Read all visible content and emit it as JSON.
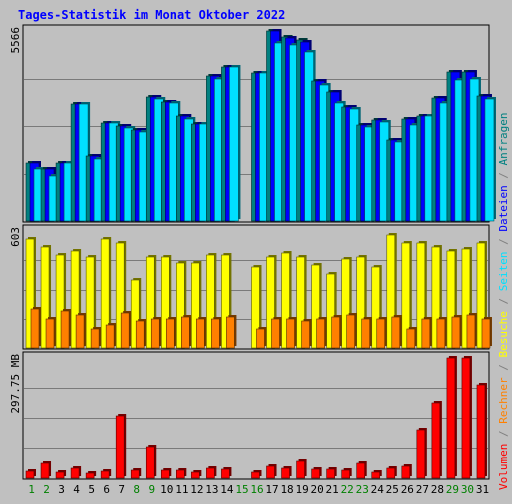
{
  "chart_data": {
    "type": "bar",
    "title": "Tages-Statistik im Monat Oktober 2022",
    "categories": [
      "1",
      "2",
      "3",
      "4",
      "5",
      "6",
      "7",
      "8",
      "9",
      "10",
      "11",
      "12",
      "13",
      "14",
      "15",
      "16",
      "17",
      "18",
      "19",
      "20",
      "21",
      "22",
      "23",
      "24",
      "25",
      "26",
      "27",
      "28",
      "29",
      "30",
      "31"
    ],
    "weekend_days": [
      "1",
      "2",
      "8",
      "9",
      "15",
      "16",
      "22",
      "23",
      "29",
      "30"
    ],
    "panels": [
      {
        "name": "top",
        "ymax_label": "5566",
        "ylim": [
          0,
          5566
        ],
        "series": [
          {
            "name": "Anfragen",
            "color": "#008080",
            "values": [
              1690,
              1510,
              1690,
              3440,
              1900,
              2870,
              2790,
              2680,
              3640,
              3500,
              3070,
              2830,
              4260,
              4520,
              0,
              4350,
              5566,
              5390,
              5290,
              4110,
              3790,
              3330,
              2820,
              2960,
              2380,
              3000,
              3070,
              3600,
              4370,
              4360,
              3650
            ]
          },
          {
            "name": "Dateien",
            "color": "#0000ff",
            "values": [
              1690,
              1510,
              1690,
              3440,
              1900,
              2870,
              2790,
              2680,
              3640,
              3500,
              3070,
              2830,
              4260,
              4520,
              0,
              4350,
              5566,
              5360,
              5250,
              4110,
              3790,
              3330,
              2820,
              2960,
              2380,
              3000,
              3070,
              3600,
              4370,
              4360,
              3650
            ]
          },
          {
            "name": "Seiten",
            "color": "#00e0ff",
            "values": [
              1510,
              1310,
              1690,
              3440,
              1810,
              2870,
              2720,
              2620,
              3580,
              3450,
              2990,
              2830,
              4150,
              4520,
              0,
              4350,
              5200,
              5170,
              4950,
              3980,
              3470,
              3270,
              2750,
              2900,
              2310,
              2800,
              3090,
              3470,
              4130,
              4150,
              3580
            ]
          }
        ]
      },
      {
        "name": "middle",
        "ymax_label": "603",
        "ylim": [
          0,
          603
        ],
        "series": [
          {
            "name": "Besuche",
            "color": "#ffff00",
            "values": [
              560,
              520,
              480,
              500,
              470,
              560,
              540,
              350,
              470,
              470,
              440,
              440,
              480,
              480,
              0,
              420,
              470,
              490,
              470,
              430,
              380,
              460,
              470,
              420,
              580,
              540,
              540,
              520,
              500,
              510,
              540
            ]
          },
          {
            "name": "Rechner",
            "color": "#ff8000",
            "values": [
              200,
              150,
              190,
              170,
              100,
              120,
              180,
              140,
              150,
              150,
              160,
              150,
              150,
              160,
              0,
              100,
              150,
              150,
              140,
              150,
              160,
              170,
              150,
              150,
              160,
              100,
              150,
              150,
              160,
              170,
              150
            ]
          }
        ]
      },
      {
        "name": "bottom",
        "ymax_label": "297.75 MB",
        "ylim": [
          0,
          297.75
        ],
        "series": [
          {
            "name": "Volumen",
            "color": "#ff0000",
            "values": [
              18,
              36,
              14,
              26,
              12,
              18,
              155,
              20,
              76,
              20,
              20,
              16,
              26,
              23,
              0,
              16,
              30,
              24,
              42,
              23,
              23,
              20,
              38,
              15,
              24,
              30,
              120,
              186,
              297,
              297,
              230
            ]
          }
        ]
      }
    ],
    "legend": [
      "Volumen",
      "/",
      "Rechner",
      "/",
      "Besuche",
      "/",
      "Seiten",
      "/",
      "Dateien",
      "/",
      "Anfragen"
    ],
    "legend_colors": [
      "#ff0000",
      "#808080",
      "#ff8000",
      "#808080",
      "#ffff00",
      "#808080",
      "#00e0ff",
      "#808080",
      "#0000ff",
      "#808080",
      "#008080"
    ],
    "colors": {
      "background": "#c0c0c0",
      "title": "#0000ff",
      "axis_text": "#000000",
      "weekday": "#000000",
      "weekend": "#008000"
    }
  }
}
